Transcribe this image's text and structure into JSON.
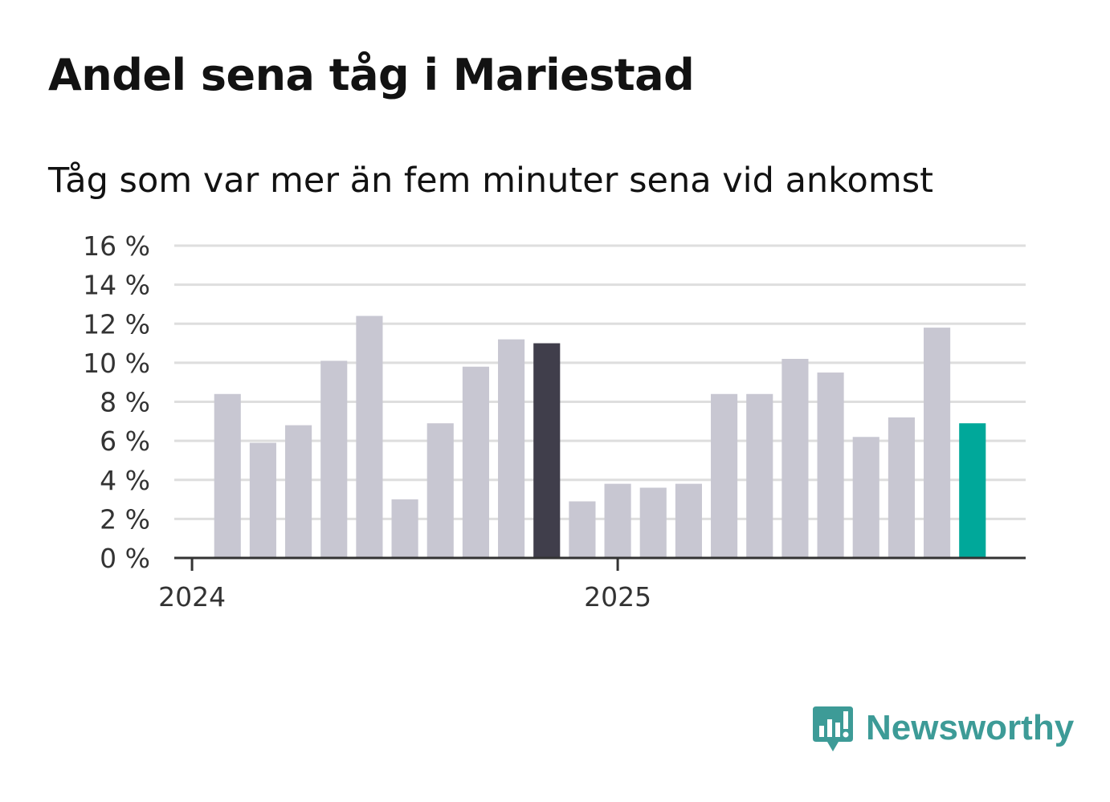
{
  "header": {
    "title": "Andel sena tåg i Mariestad",
    "subtitle": "Tåg som var mer än fem minuter sena vid ankomst"
  },
  "brand": {
    "name": "Newsworthy",
    "color": "#3d9b97"
  },
  "colors": {
    "bar": "#c8c7d2",
    "highlight_dark": "#403e4b",
    "highlight_latest": "#00a89a",
    "grid": "#dedede",
    "axis": "#333333"
  },
  "chart_data": {
    "type": "bar",
    "title": "Andel sena tåg i Mariestad",
    "subtitle": "Tåg som var mer än fem minuter sena vid ankomst",
    "xlabel": "",
    "ylabel": "",
    "ylim": [
      0,
      16
    ],
    "yticks": [
      0,
      2,
      4,
      6,
      8,
      10,
      12,
      14,
      16
    ],
    "ytick_labels": [
      "0 %",
      "2 %",
      "4 %",
      "6 %",
      "8 %",
      "10 %",
      "12 %",
      "14 %",
      "16 %"
    ],
    "grid": true,
    "x_tick_labels": [
      "2024",
      "2025"
    ],
    "categories": [
      "2024-01",
      "2024-02",
      "2024-03",
      "2024-04",
      "2024-05",
      "2024-06",
      "2024-07",
      "2024-08",
      "2024-09",
      "2024-10",
      "2024-11",
      "2024-12",
      "2025-01",
      "2025-02",
      "2025-03",
      "2025-04",
      "2025-05",
      "2025-06",
      "2025-07",
      "2025-08",
      "2025-09",
      "2025-10",
      "2025-11",
      "2025-12"
    ],
    "values": [
      null,
      8.4,
      5.9,
      6.8,
      10.1,
      12.4,
      3.0,
      6.9,
      9.8,
      11.2,
      11.0,
      2.9,
      3.8,
      3.6,
      3.8,
      8.4,
      8.4,
      10.2,
      9.5,
      6.2,
      7.2,
      11.8,
      6.9,
      null
    ],
    "highlight": {
      "2024-11": "dark",
      "2025-11": "latest"
    }
  }
}
